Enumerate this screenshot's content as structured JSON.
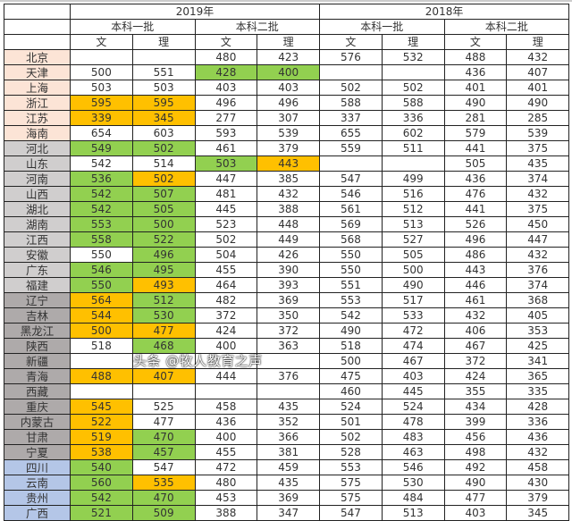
{
  "header": {
    "years": [
      "2019年",
      "2018年"
    ],
    "batches": [
      "本科一批",
      "本科二批",
      "本科一批",
      "本科二批"
    ],
    "subjects": [
      "文",
      "理",
      "文",
      "理",
      "文",
      "理",
      "文",
      "理"
    ]
  },
  "colors": {
    "green": "#92d050",
    "orange": "#ffc000",
    "group1": "#fce4d6",
    "group2": "#d0cece",
    "group3": "#aeaaaa",
    "group4": "#b4c6e7"
  },
  "rows": [
    {
      "province": "北京",
      "group": "group1",
      "values": [
        "",
        "",
        "480",
        "423",
        "576",
        "532",
        "488",
        "432"
      ],
      "highlight": [
        "",
        "",
        "",
        ""
      ]
    },
    {
      "province": "天津",
      "group": "group1",
      "values": [
        "500",
        "551",
        "428",
        "400",
        "",
        "",
        "436",
        "407"
      ],
      "highlight": [
        "",
        "",
        "green",
        "green"
      ]
    },
    {
      "province": "上海",
      "group": "group1",
      "values": [
        "503",
        "503",
        "403",
        "403",
        "502",
        "502",
        "401",
        "401"
      ],
      "highlight": [
        "",
        "",
        "",
        ""
      ]
    },
    {
      "province": "浙江",
      "group": "group1",
      "values": [
        "595",
        "595",
        "496",
        "496",
        "588",
        "588",
        "490",
        "490"
      ],
      "highlight": [
        "orange",
        "orange",
        "",
        ""
      ]
    },
    {
      "province": "江苏",
      "group": "group1",
      "values": [
        "339",
        "345",
        "277",
        "307",
        "337",
        "336",
        "281",
        "285"
      ],
      "highlight": [
        "orange",
        "orange",
        "",
        ""
      ]
    },
    {
      "province": "海南",
      "group": "group1",
      "values": [
        "654",
        "603",
        "593",
        "539",
        "655",
        "602",
        "579",
        "539"
      ],
      "highlight": [
        "",
        "",
        "",
        ""
      ]
    },
    {
      "province": "河北",
      "group": "group2",
      "values": [
        "549",
        "502",
        "461",
        "379",
        "559",
        "511",
        "441",
        "375"
      ],
      "highlight": [
        "green",
        "green",
        "",
        ""
      ]
    },
    {
      "province": "山东",
      "group": "group2",
      "values": [
        "542",
        "514",
        "503",
        "443",
        "",
        "",
        "505",
        "435"
      ],
      "highlight": [
        "",
        "",
        "green",
        "orange"
      ]
    },
    {
      "province": "河南",
      "group": "group2",
      "values": [
        "536",
        "502",
        "447",
        "385",
        "547",
        "499",
        "436",
        "374"
      ],
      "highlight": [
        "green",
        "orange",
        "",
        ""
      ]
    },
    {
      "province": "山西",
      "group": "group2",
      "values": [
        "542",
        "507",
        "481",
        "432",
        "546",
        "516",
        "476",
        "432"
      ],
      "highlight": [
        "green",
        "green",
        "",
        ""
      ]
    },
    {
      "province": "湖北",
      "group": "group2",
      "values": [
        "542",
        "505",
        "445",
        "388",
        "561",
        "512",
        "441",
        "375"
      ],
      "highlight": [
        "green",
        "green",
        "",
        ""
      ]
    },
    {
      "province": "湖南",
      "group": "group2",
      "values": [
        "553",
        "500",
        "523",
        "448",
        "569",
        "513",
        "526",
        "450"
      ],
      "highlight": [
        "green",
        "green",
        "",
        ""
      ]
    },
    {
      "province": "江西",
      "group": "group2",
      "values": [
        "558",
        "522",
        "502",
        "449",
        "568",
        "527",
        "496",
        "447"
      ],
      "highlight": [
        "green",
        "green",
        "",
        ""
      ]
    },
    {
      "province": "安徽",
      "group": "group2",
      "values": [
        "550",
        "496",
        "504",
        "426",
        "550",
        "505",
        "486",
        "432"
      ],
      "highlight": [
        "",
        "green",
        "",
        ""
      ]
    },
    {
      "province": "广东",
      "group": "group2",
      "values": [
        "546",
        "495",
        "455",
        "390",
        "550",
        "500",
        "443",
        "376"
      ],
      "highlight": [
        "green",
        "green",
        "",
        ""
      ]
    },
    {
      "province": "福建",
      "group": "group2",
      "values": [
        "550",
        "493",
        "464",
        "393",
        "551",
        "490",
        "446",
        "374"
      ],
      "highlight": [
        "green",
        "orange",
        "",
        ""
      ]
    },
    {
      "province": "辽宁",
      "group": "group3",
      "values": [
        "564",
        "512",
        "482",
        "369",
        "553",
        "517",
        "461",
        "368"
      ],
      "highlight": [
        "orange",
        "green",
        "",
        ""
      ]
    },
    {
      "province": "吉林",
      "group": "group3",
      "values": [
        "544",
        "530",
        "372",
        "350",
        "542",
        "533",
        "432",
        "405"
      ],
      "highlight": [
        "orange",
        "green",
        "",
        ""
      ]
    },
    {
      "province": "黑龙江",
      "group": "group3",
      "values": [
        "500",
        "477",
        "424",
        "372",
        "490",
        "472",
        "406",
        "353"
      ],
      "highlight": [
        "orange",
        "orange",
        "",
        ""
      ]
    },
    {
      "province": "陕西",
      "group": "group3",
      "values": [
        "518",
        "468",
        "400",
        "363",
        "518",
        "474",
        "467",
        "425"
      ],
      "highlight": [
        "",
        "green",
        "",
        ""
      ]
    },
    {
      "province": "新疆",
      "group": "group3",
      "values": [
        "",
        "",
        "",
        "",
        "500",
        "467",
        "372",
        "341"
      ],
      "highlight": [
        "",
        "",
        "",
        ""
      ]
    },
    {
      "province": "青海",
      "group": "group3",
      "values": [
        "488",
        "407",
        "444",
        "376",
        "475",
        "403",
        "424",
        "365"
      ],
      "highlight": [
        "orange",
        "orange",
        "",
        ""
      ]
    },
    {
      "province": "西藏",
      "group": "group3",
      "values": [
        "",
        "",
        "",
        "",
        "460",
        "445",
        "355",
        "335"
      ],
      "highlight": [
        "",
        "",
        "",
        ""
      ]
    },
    {
      "province": "重庆",
      "group": "group3",
      "values": [
        "545",
        "525",
        "458",
        "435",
        "524",
        "524",
        "434",
        "428"
      ],
      "highlight": [
        "orange",
        "",
        "",
        ""
      ]
    },
    {
      "province": "内蒙古",
      "group": "group3",
      "values": [
        "522",
        "477",
        "436",
        "352",
        "501",
        "478",
        "399",
        "336"
      ],
      "highlight": [
        "orange",
        "",
        "",
        ""
      ]
    },
    {
      "province": "甘肃",
      "group": "group3",
      "values": [
        "519",
        "470",
        "400",
        "366",
        "502",
        "483",
        "456",
        "436"
      ],
      "highlight": [
        "orange",
        "green",
        "",
        ""
      ]
    },
    {
      "province": "宁夏",
      "group": "group3",
      "values": [
        "538",
        "457",
        "455",
        "381",
        "528",
        "463",
        "498",
        "432"
      ],
      "highlight": [
        "orange",
        "green",
        "",
        ""
      ]
    },
    {
      "province": "四川",
      "group": "group4",
      "values": [
        "540",
        "547",
        "472",
        "459",
        "553",
        "546",
        "492",
        "458"
      ],
      "highlight": [
        "green",
        "",
        "",
        ""
      ]
    },
    {
      "province": "云南",
      "group": "group4",
      "values": [
        "560",
        "535",
        "480",
        "435",
        "575",
        "530",
        "490",
        "430"
      ],
      "highlight": [
        "green",
        "orange",
        "",
        ""
      ]
    },
    {
      "province": "贵州",
      "group": "group4",
      "values": [
        "542",
        "470",
        "453",
        "369",
        "575",
        "484",
        "477",
        "379"
      ],
      "highlight": [
        "green",
        "green",
        "",
        ""
      ]
    },
    {
      "province": "广西",
      "group": "group4",
      "values": [
        "521",
        "509",
        "388",
        "347",
        "547",
        "513",
        "403",
        "345"
      ],
      "highlight": [
        "green",
        "green",
        "",
        ""
      ]
    }
  ],
  "watermark": "头条 @牧人教育之声"
}
